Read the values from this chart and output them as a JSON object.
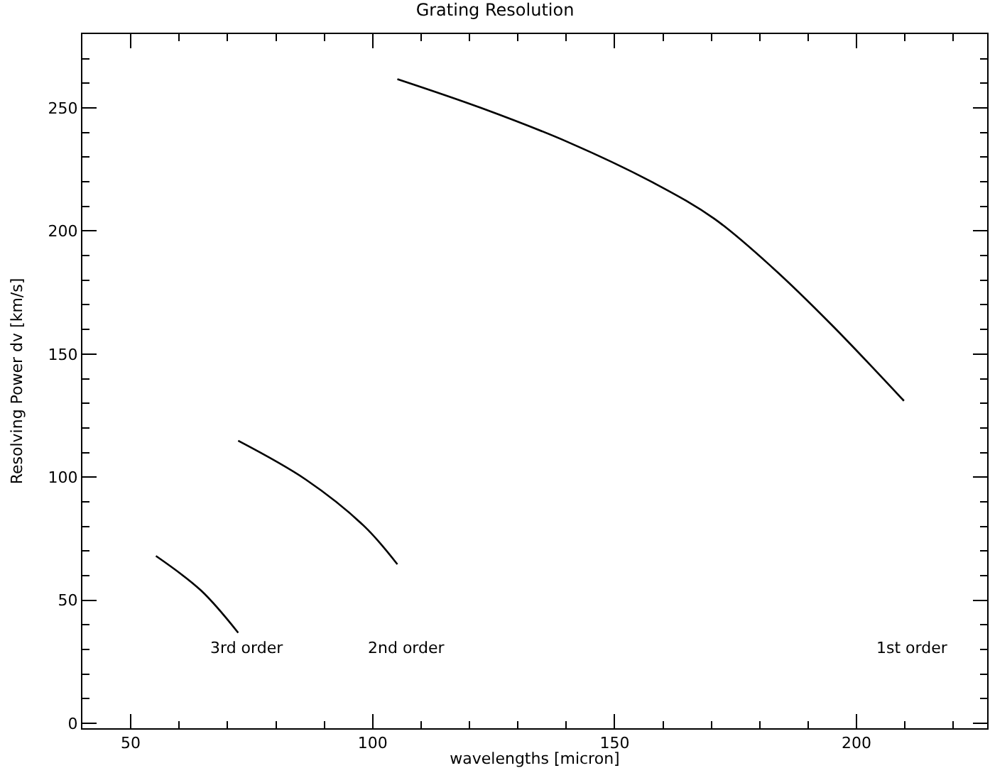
{
  "chart_data": {
    "type": "line",
    "title": "Grating Resolution",
    "xlabel": "wavelengths [micron]",
    "ylabel": "Resolving Power dv [km/s]",
    "xlim": [
      40,
      227
    ],
    "ylim": [
      -2,
      280
    ],
    "xticks": [
      50,
      100,
      150,
      200
    ],
    "yticks": [
      0,
      50,
      100,
      150,
      200,
      250
    ],
    "marker": "none",
    "line_style": "solid",
    "series": [
      {
        "color": "#000000",
        "x": [
          55.2,
          64.5,
          72.2
        ],
        "values": [
          68,
          54,
          36.8
        ]
      },
      {
        "color": "#000000",
        "x": [
          72.2,
          86.2,
          98.3,
          105.1
        ],
        "values": [
          114.8,
          99,
          80,
          64.6
        ]
      },
      {
        "color": "#000000",
        "x": [
          105.1,
          122.4,
          140.5,
          158.6,
          170.6,
          182.7,
          194.8,
          209.8
        ],
        "values": [
          261.7,
          250,
          236,
          219,
          205,
          185,
          162,
          131
        ]
      }
    ],
    "annotations": [
      "3rd order",
      "2nd order",
      "1st order"
    ]
  }
}
